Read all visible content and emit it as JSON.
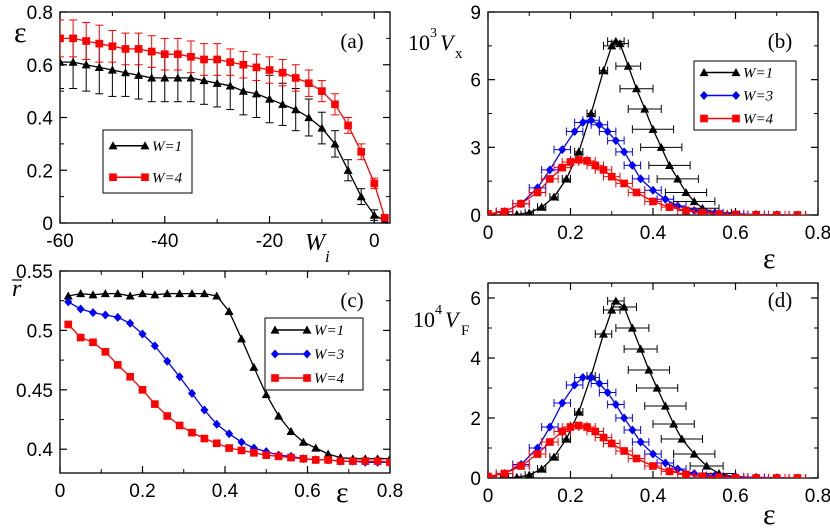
{
  "chart_data": [
    {
      "type": "line",
      "panel": "(a)",
      "ylabel": "ε",
      "xlabel": "W",
      "xlabel_sub": "i",
      "xlim": [
        -60,
        3
      ],
      "ylim": [
        0,
        0.8
      ],
      "xticks": [
        -60,
        -40,
        -20,
        0
      ],
      "yticks": [
        0,
        0.2,
        0.4,
        0.6,
        0.8
      ],
      "legend": [
        "W=1",
        "W=4"
      ],
      "series": [
        {
          "name": "W=1",
          "color": "#000000",
          "marker": "triangle",
          "x": [
            -60,
            -57.5,
            -55,
            -52.5,
            -50,
            -47.5,
            -45,
            -42.5,
            -40,
            -37.5,
            -35,
            -32.5,
            -30,
            -27.5,
            -25,
            -22.5,
            -20,
            -17.5,
            -15,
            -12.5,
            -10,
            -7.5,
            -5,
            -2.5,
            0,
            2
          ],
          "y": [
            0.61,
            0.61,
            0.6,
            0.59,
            0.58,
            0.57,
            0.56,
            0.55,
            0.55,
            0.55,
            0.55,
            0.54,
            0.53,
            0.52,
            0.5,
            0.49,
            0.47,
            0.45,
            0.43,
            0.4,
            0.36,
            0.3,
            0.2,
            0.1,
            0.03,
            0.01
          ],
          "err": [
            0.1,
            0.1,
            0.1,
            0.1,
            0.1,
            0.09,
            0.09,
            0.09,
            0.09,
            0.09,
            0.09,
            0.09,
            0.09,
            0.09,
            0.09,
            0.09,
            0.09,
            0.08,
            0.08,
            0.07,
            0.06,
            0.05,
            0.04,
            0.03,
            0.02,
            0.01
          ]
        },
        {
          "name": "W=4",
          "color": "#ff0000",
          "marker": "square",
          "x": [
            -60,
            -57.5,
            -55,
            -52.5,
            -50,
            -47.5,
            -45,
            -42.5,
            -40,
            -37.5,
            -35,
            -32.5,
            -30,
            -27.5,
            -25,
            -22.5,
            -20,
            -17.5,
            -15,
            -12.5,
            -10,
            -7.5,
            -5,
            -2.5,
            0,
            2
          ],
          "y": [
            0.7,
            0.7,
            0.69,
            0.68,
            0.67,
            0.66,
            0.66,
            0.65,
            0.64,
            0.64,
            0.63,
            0.62,
            0.62,
            0.61,
            0.6,
            0.59,
            0.58,
            0.57,
            0.55,
            0.53,
            0.5,
            0.45,
            0.37,
            0.27,
            0.15,
            0.02
          ],
          "err": [
            0.07,
            0.07,
            0.07,
            0.07,
            0.06,
            0.06,
            0.06,
            0.06,
            0.06,
            0.06,
            0.06,
            0.06,
            0.06,
            0.05,
            0.05,
            0.05,
            0.05,
            0.05,
            0.05,
            0.05,
            0.04,
            0.04,
            0.03,
            0.03,
            0.02,
            0.01
          ]
        }
      ]
    },
    {
      "type": "line",
      "panel": "(b)",
      "ylabel": "10",
      "ylabel_sup": "3",
      "ylabel_var": "V",
      "ylabel_sub": "x",
      "xlabel": "ε",
      "xlim": [
        0,
        0.8
      ],
      "ylim": [
        0,
        9
      ],
      "xticks": [
        0,
        0.2,
        0.4,
        0.6,
        0.8
      ],
      "yticks": [
        0,
        3,
        6,
        9
      ],
      "legend": [
        "W=1",
        "W=3",
        "W=4"
      ],
      "series": [
        {
          "name": "W=1",
          "color": "#000000",
          "marker": "triangle",
          "x": [
            0.04,
            0.07,
            0.1,
            0.13,
            0.16,
            0.19,
            0.22,
            0.25,
            0.28,
            0.3,
            0.31,
            0.32,
            0.34,
            0.36,
            0.38,
            0.4,
            0.42,
            0.44,
            0.46,
            0.48,
            0.5,
            0.52,
            0.55,
            0.58
          ],
          "y": [
            0,
            0.02,
            0.1,
            0.35,
            0.8,
            1.6,
            2.8,
            4.5,
            6.4,
            7.5,
            7.7,
            7.6,
            6.6,
            5.6,
            4.7,
            3.8,
            3,
            2.2,
            1.6,
            1,
            0.6,
            0.3,
            0.1,
            0.02
          ],
          "xerr": [
            0.01,
            0.01,
            0.01,
            0.01,
            0.01,
            0.01,
            0.01,
            0.01,
            0.01,
            0.02,
            0.02,
            0.02,
            0.03,
            0.04,
            0.04,
            0.05,
            0.05,
            0.05,
            0.05,
            0.05,
            0.05,
            0.04,
            0.04,
            0.03
          ]
        },
        {
          "name": "W=3",
          "color": "#0000ff",
          "marker": "diamond",
          "x": [
            0,
            0.04,
            0.08,
            0.12,
            0.15,
            0.18,
            0.21,
            0.23,
            0.25,
            0.27,
            0.29,
            0.31,
            0.33,
            0.35,
            0.37,
            0.4,
            0.43,
            0.46,
            0.5,
            0.55,
            0.6,
            0.65,
            0.7,
            0.75
          ],
          "y": [
            0.05,
            0.15,
            0.5,
            1.2,
            2,
            2.9,
            3.7,
            4.1,
            4.2,
            4,
            3.7,
            3.3,
            2.8,
            2.2,
            1.6,
            1.1,
            0.7,
            0.4,
            0.2,
            0.1,
            0.05,
            0.02,
            0.01,
            0
          ],
          "xerr": [
            0.02,
            0.02,
            0.02,
            0.02,
            0.02,
            0.02,
            0.02,
            0.02,
            0.02,
            0.02,
            0.02,
            0.02,
            0.02,
            0.02,
            0.02,
            0.02,
            0.02,
            0.02,
            0.02,
            0.02,
            0.02,
            0.02,
            0.02,
            0.02
          ]
        },
        {
          "name": "W=4",
          "color": "#ff0000",
          "marker": "square",
          "x": [
            0,
            0.04,
            0.08,
            0.12,
            0.15,
            0.18,
            0.2,
            0.22,
            0.24,
            0.26,
            0.28,
            0.3,
            0.33,
            0.36,
            0.4,
            0.44,
            0.48,
            0.52,
            0.56,
            0.6,
            0.65,
            0.7,
            0.75
          ],
          "y": [
            0.05,
            0.15,
            0.5,
            1,
            1.6,
            2.1,
            2.35,
            2.45,
            2.4,
            2.2,
            2,
            1.7,
            1.4,
            1,
            0.6,
            0.35,
            0.2,
            0.1,
            0.05,
            0.02,
            0.01,
            0,
            0
          ],
          "xerr": [
            0.02,
            0.02,
            0.02,
            0.02,
            0.02,
            0.02,
            0.02,
            0.02,
            0.02,
            0.02,
            0.02,
            0.02,
            0.02,
            0.02,
            0.02,
            0.02,
            0.02,
            0.02,
            0.02,
            0.02,
            0.02,
            0.02,
            0.02
          ]
        }
      ]
    },
    {
      "type": "line",
      "panel": "(c)",
      "ylabel": "r",
      "xlabel": "ε",
      "xlim": [
        0,
        0.8
      ],
      "ylim": [
        0.38,
        0.55
      ],
      "xticks": [
        0,
        0.2,
        0.4,
        0.6,
        0.8
      ],
      "yticks": [
        0.4,
        0.45,
        0.5,
        0.55
      ],
      "legend": [
        "W=1",
        "W=3",
        "W=4"
      ],
      "series": [
        {
          "name": "W=1",
          "color": "#000000",
          "marker": "triangle",
          "x": [
            0.02,
            0.05,
            0.08,
            0.11,
            0.14,
            0.17,
            0.2,
            0.23,
            0.26,
            0.29,
            0.32,
            0.35,
            0.38,
            0.41,
            0.44,
            0.47,
            0.5,
            0.53,
            0.56,
            0.59,
            0.62,
            0.65,
            0.68,
            0.71,
            0.74,
            0.77,
            0.8
          ],
          "y": [
            0.529,
            0.531,
            0.53,
            0.531,
            0.531,
            0.529,
            0.531,
            0.53,
            0.531,
            0.531,
            0.531,
            0.531,
            0.529,
            0.516,
            0.493,
            0.469,
            0.446,
            0.428,
            0.415,
            0.406,
            0.401,
            0.396,
            0.393,
            0.392,
            0.392,
            0.392,
            0.392
          ]
        },
        {
          "name": "W=3",
          "color": "#0000ff",
          "marker": "diamond",
          "x": [
            0.02,
            0.05,
            0.08,
            0.11,
            0.14,
            0.17,
            0.2,
            0.23,
            0.26,
            0.29,
            0.32,
            0.35,
            0.38,
            0.41,
            0.44,
            0.47,
            0.5,
            0.53,
            0.56,
            0.59,
            0.62,
            0.65,
            0.68,
            0.71,
            0.74,
            0.77,
            0.8
          ],
          "y": [
            0.524,
            0.518,
            0.515,
            0.513,
            0.511,
            0.506,
            0.497,
            0.487,
            0.474,
            0.461,
            0.447,
            0.433,
            0.421,
            0.413,
            0.406,
            0.401,
            0.398,
            0.395,
            0.394,
            0.392,
            0.391,
            0.391,
            0.39,
            0.39,
            0.389,
            0.389,
            0.389
          ]
        },
        {
          "name": "W=4",
          "color": "#ff0000",
          "marker": "square",
          "x": [
            0.02,
            0.05,
            0.08,
            0.11,
            0.14,
            0.17,
            0.2,
            0.23,
            0.26,
            0.29,
            0.32,
            0.35,
            0.38,
            0.41,
            0.44,
            0.47,
            0.5,
            0.53,
            0.56,
            0.59,
            0.62,
            0.65,
            0.68,
            0.71,
            0.74,
            0.77,
            0.8
          ],
          "y": [
            0.505,
            0.494,
            0.49,
            0.482,
            0.471,
            0.461,
            0.45,
            0.438,
            0.428,
            0.42,
            0.414,
            0.409,
            0.405,
            0.401,
            0.399,
            0.397,
            0.395,
            0.394,
            0.393,
            0.392,
            0.391,
            0.391,
            0.39,
            0.39,
            0.39,
            0.39,
            0.389
          ]
        }
      ]
    },
    {
      "type": "line",
      "panel": "(d)",
      "ylabel": "10",
      "ylabel_sup": "4",
      "ylabel_var": "V",
      "ylabel_sub": "F",
      "xlabel": "ε",
      "xlim": [
        0,
        0.8
      ],
      "ylim": [
        0,
        6.5
      ],
      "xticks": [
        0,
        0.2,
        0.4,
        0.6,
        0.8
      ],
      "yticks": [
        0,
        2,
        4,
        6
      ],
      "series": [
        {
          "name": "W=1",
          "color": "#000000",
          "marker": "triangle",
          "x": [
            0.04,
            0.07,
            0.1,
            0.13,
            0.16,
            0.19,
            0.22,
            0.25,
            0.28,
            0.3,
            0.31,
            0.33,
            0.35,
            0.37,
            0.39,
            0.41,
            0.43,
            0.45,
            0.47,
            0.5,
            0.53,
            0.56,
            0.6
          ],
          "y": [
            0,
            0.02,
            0.1,
            0.3,
            0.7,
            1.3,
            2.2,
            3.4,
            4.8,
            5.6,
            5.9,
            5.7,
            5,
            4.3,
            3.6,
            3,
            2.4,
            1.8,
            1.3,
            0.8,
            0.4,
            0.15,
            0.03
          ],
          "xerr": [
            0.01,
            0.01,
            0.01,
            0.01,
            0.01,
            0.01,
            0.01,
            0.01,
            0.02,
            0.02,
            0.02,
            0.03,
            0.04,
            0.04,
            0.05,
            0.05,
            0.05,
            0.05,
            0.05,
            0.05,
            0.04,
            0.04,
            0.03
          ]
        },
        {
          "name": "W=3",
          "color": "#0000ff",
          "marker": "diamond",
          "x": [
            0,
            0.04,
            0.08,
            0.12,
            0.15,
            0.18,
            0.21,
            0.23,
            0.25,
            0.27,
            0.29,
            0.31,
            0.33,
            0.35,
            0.37,
            0.4,
            0.43,
            0.46,
            0.5,
            0.55,
            0.6,
            0.65,
            0.7,
            0.75
          ],
          "y": [
            0.05,
            0.15,
            0.45,
            1,
            1.7,
            2.5,
            3.1,
            3.35,
            3.35,
            3.15,
            2.85,
            2.45,
            2,
            1.6,
            1.2,
            0.8,
            0.5,
            0.3,
            0.15,
            0.08,
            0.04,
            0.02,
            0.01,
            0
          ],
          "xerr": [
            0.02,
            0.02,
            0.02,
            0.02,
            0.02,
            0.02,
            0.02,
            0.02,
            0.02,
            0.02,
            0.02,
            0.02,
            0.02,
            0.02,
            0.02,
            0.02,
            0.02,
            0.02,
            0.02,
            0.02,
            0.02,
            0.02,
            0.02,
            0.02
          ]
        },
        {
          "name": "W=4",
          "color": "#ff0000",
          "marker": "square",
          "x": [
            0,
            0.04,
            0.08,
            0.12,
            0.15,
            0.18,
            0.2,
            0.22,
            0.24,
            0.26,
            0.28,
            0.3,
            0.33,
            0.36,
            0.4,
            0.44,
            0.48,
            0.52,
            0.56,
            0.6,
            0.65,
            0.7,
            0.75
          ],
          "y": [
            0.05,
            0.15,
            0.4,
            0.8,
            1.2,
            1.55,
            1.7,
            1.75,
            1.7,
            1.55,
            1.35,
            1.15,
            0.9,
            0.65,
            0.4,
            0.22,
            0.12,
            0.06,
            0.03,
            0.01,
            0,
            0,
            0
          ],
          "xerr": [
            0.02,
            0.02,
            0.02,
            0.02,
            0.02,
            0.02,
            0.02,
            0.02,
            0.02,
            0.02,
            0.02,
            0.02,
            0.02,
            0.02,
            0.02,
            0.02,
            0.02,
            0.02,
            0.02,
            0.02,
            0.02,
            0.02,
            0.02
          ]
        }
      ]
    }
  ]
}
